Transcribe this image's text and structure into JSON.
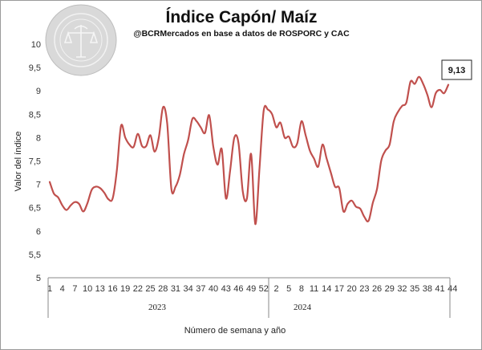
{
  "chart_data": {
    "type": "line",
    "title": "Índice Capón/ Maíz",
    "subtitle": "@BCRMercados  en base a datos de ROSPORC y CAC",
    "xlabel": "Número de semana y año",
    "ylabel": "Valor del índice",
    "ylim": [
      5,
      10
    ],
    "y_ticks": [
      "5",
      "5,5",
      "6",
      "6,5",
      "7",
      "7,5",
      "8",
      "8,5",
      "9",
      "9,5",
      "10"
    ],
    "grid": false,
    "x_tick_labels": [
      "1",
      "4",
      "7",
      "10",
      "13",
      "16",
      "19",
      "22",
      "25",
      "28",
      "31",
      "34",
      "37",
      "40",
      "43",
      "46",
      "49",
      "52",
      "2",
      "5",
      "8",
      "11",
      "14",
      "17",
      "20",
      "23",
      "26",
      "29",
      "32",
      "35",
      "38",
      "41",
      "44"
    ],
    "year_labels": [
      "2023",
      "2024"
    ],
    "line_color": "#c0504d",
    "series": [
      {
        "values": [
          7.05,
          6.8,
          6.72,
          6.55,
          6.45,
          6.55,
          6.62,
          6.58,
          6.42,
          6.6,
          6.88,
          6.95,
          6.92,
          6.82,
          6.68,
          6.7,
          7.3,
          8.25,
          8.0,
          7.85,
          7.8,
          8.08,
          7.82,
          7.82,
          8.05,
          7.7,
          8.0,
          8.65,
          8.3,
          6.9,
          6.95,
          7.2,
          7.65,
          7.95,
          8.4,
          8.35,
          8.22,
          8.1,
          8.48,
          7.8,
          7.42,
          7.75,
          6.7,
          7.3,
          8.0,
          7.88,
          6.85,
          6.7,
          7.65,
          6.15,
          7.35,
          8.58,
          8.6,
          8.5,
          8.22,
          8.32,
          8.0,
          8.02,
          7.8,
          7.88,
          8.35,
          8.05,
          7.72,
          7.55,
          7.38,
          7.85,
          7.55,
          7.25,
          6.95,
          6.92,
          6.42,
          6.58,
          6.65,
          6.52,
          6.48,
          6.3,
          6.22,
          6.6,
          6.9,
          7.5,
          7.72,
          7.85,
          8.35,
          8.55,
          8.68,
          8.75,
          9.2,
          9.15,
          9.3,
          9.15,
          8.92,
          8.65,
          8.95,
          9.02,
          8.95,
          9.13
        ]
      }
    ],
    "annotation": "9,13"
  }
}
